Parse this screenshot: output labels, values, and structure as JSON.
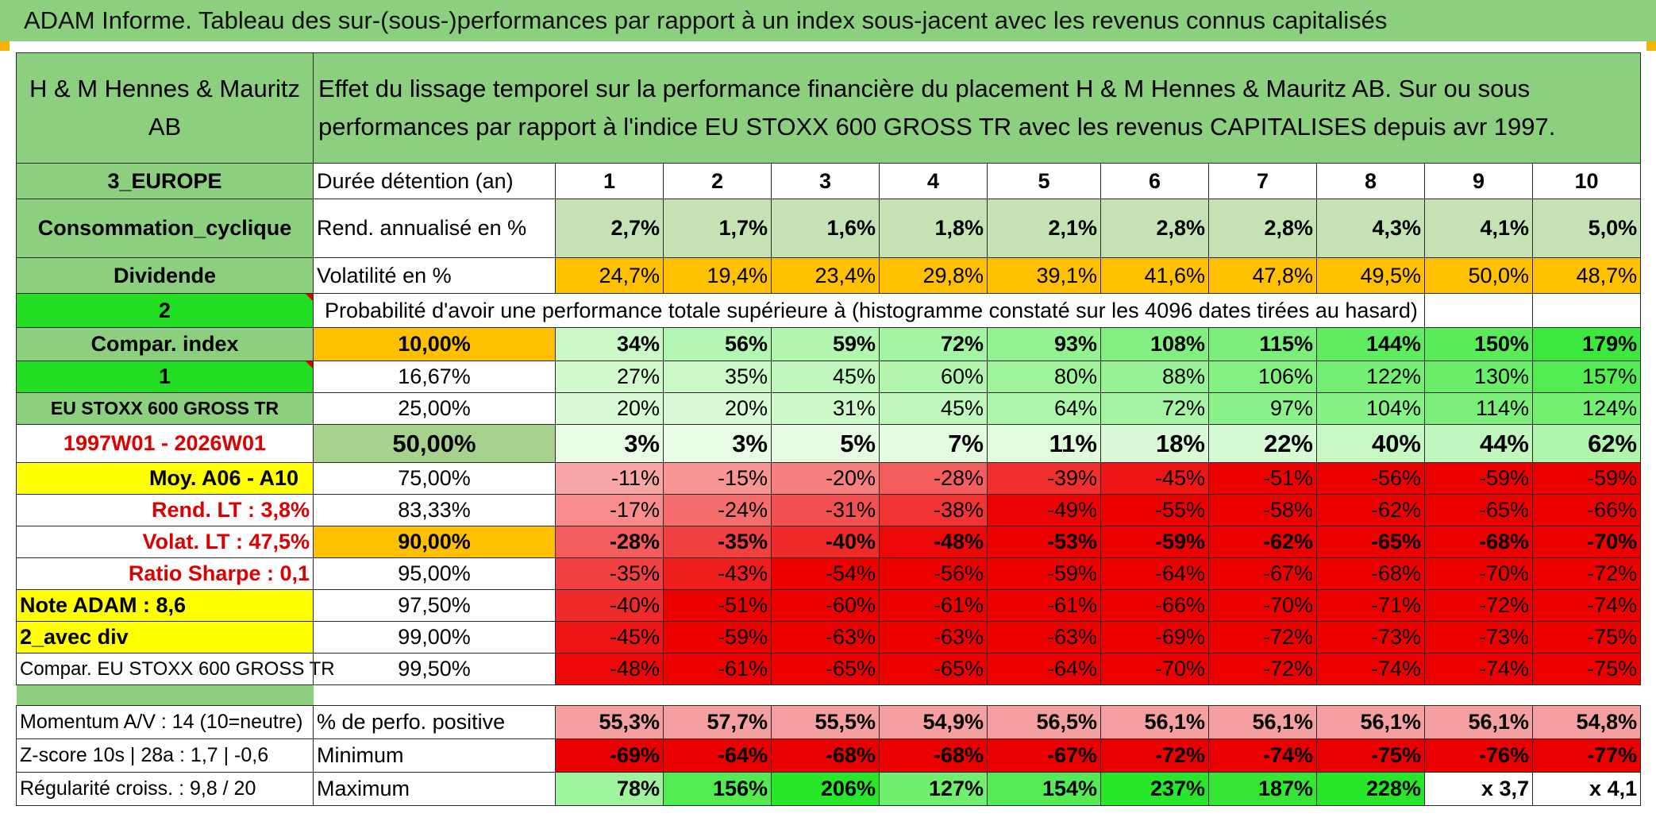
{
  "title": "ADAM Informe. Tableau des sur-(sous-)performances par rapport à un index sous-jacent avec les revenus connus capitalisés",
  "header": {
    "company": "H & M Hennes & Mauritz AB",
    "description": "Effet du lissage temporel sur la performance financière du placement H & M Hennes & Mauritz AB. Sur ou sous performances par rapport à l'indice EU STOXX 600 GROSS TR avec les revenus CAPITALISES depuis avr 1997."
  },
  "left_labels": {
    "region": "3_EUROPE",
    "sector": "Consommation_cyclique",
    "type": "Dividende",
    "val2": "2",
    "compar_index": "Compar. index",
    "val1": "1",
    "index_name": "EU STOXX 600 GROSS TR",
    "period": "1997W01 - 2026W01",
    "moy": "Moy. A06 - A10",
    "rend_lt": "Rend. LT :   3,8%",
    "volat_lt": "Volat. LT :   47,5%",
    "sharpe": "Ratio Sharpe :    0,1",
    "note": "Note ADAM : 8,6",
    "avec_div": "2_avec div",
    "compar_full": "Compar. EU STOXX 600 GROSS TR",
    "momentum": "Momentum A/V : 14 (10=neutre)",
    "zscore": "Z-score 10s | 28a : 1,7 | -0,6",
    "regularite": "Régularité croiss. : 9,8 / 20"
  },
  "row_labels": {
    "duree": "Durée détention (an)",
    "rend": "Rend. annualisé en %",
    "volat": "Volatilité en %",
    "proba": "Probabilité d'avoir une performance totale supérieure à (histogramme constaté sur les 4096 dates tirées au hasard)",
    "pct_pos": "% de perfo. positive",
    "minimum": "Minimum",
    "maximum": "Maximum"
  },
  "years": [
    "1",
    "2",
    "3",
    "4",
    "5",
    "6",
    "7",
    "8",
    "9",
    "10"
  ],
  "rend": [
    "2,7%",
    "1,7%",
    "1,6%",
    "1,8%",
    "2,1%",
    "2,8%",
    "2,8%",
    "4,3%",
    "4,1%",
    "5,0%"
  ],
  "volat": [
    "24,7%",
    "19,4%",
    "23,4%",
    "29,8%",
    "39,1%",
    "41,6%",
    "47,8%",
    "49,5%",
    "50,0%",
    "48,7%"
  ],
  "prob_rows": [
    {
      "p": "10,00%",
      "v": [
        "34%",
        "56%",
        "59%",
        "72%",
        "93%",
        "108%",
        "115%",
        "144%",
        "150%",
        "179%"
      ]
    },
    {
      "p": "16,67%",
      "v": [
        "27%",
        "35%",
        "45%",
        "60%",
        "80%",
        "88%",
        "106%",
        "122%",
        "130%",
        "157%"
      ]
    },
    {
      "p": "25,00%",
      "v": [
        "20%",
        "20%",
        "31%",
        "45%",
        "64%",
        "72%",
        "97%",
        "104%",
        "114%",
        "124%"
      ]
    },
    {
      "p": "50,00%",
      "v": [
        "3%",
        "3%",
        "5%",
        "7%",
        "11%",
        "18%",
        "22%",
        "40%",
        "44%",
        "62%"
      ]
    },
    {
      "p": "75,00%",
      "v": [
        "-11%",
        "-15%",
        "-20%",
        "-28%",
        "-39%",
        "-45%",
        "-51%",
        "-56%",
        "-59%",
        "-59%"
      ]
    },
    {
      "p": "83,33%",
      "v": [
        "-17%",
        "-24%",
        "-31%",
        "-38%",
        "-49%",
        "-55%",
        "-58%",
        "-62%",
        "-65%",
        "-66%"
      ]
    },
    {
      "p": "90,00%",
      "v": [
        "-28%",
        "-35%",
        "-40%",
        "-48%",
        "-53%",
        "-59%",
        "-62%",
        "-65%",
        "-68%",
        "-70%"
      ]
    },
    {
      "p": "95,00%",
      "v": [
        "-35%",
        "-43%",
        "-54%",
        "-56%",
        "-59%",
        "-64%",
        "-67%",
        "-68%",
        "-70%",
        "-72%"
      ]
    },
    {
      "p": "97,50%",
      "v": [
        "-40%",
        "-51%",
        "-60%",
        "-61%",
        "-61%",
        "-66%",
        "-70%",
        "-71%",
        "-72%",
        "-74%"
      ]
    },
    {
      "p": "99,00%",
      "v": [
        "-45%",
        "-59%",
        "-63%",
        "-63%",
        "-63%",
        "-69%",
        "-72%",
        "-73%",
        "-73%",
        "-75%"
      ]
    },
    {
      "p": "99,50%",
      "v": [
        "-48%",
        "-61%",
        "-65%",
        "-65%",
        "-64%",
        "-70%",
        "-72%",
        "-74%",
        "-74%",
        "-75%"
      ]
    }
  ],
  "pct_pos": [
    "55,3%",
    "57,7%",
    "55,5%",
    "54,9%",
    "56,5%",
    "56,1%",
    "56,1%",
    "56,1%",
    "56,1%",
    "54,8%"
  ],
  "minimum": [
    "-69%",
    "-64%",
    "-68%",
    "-68%",
    "-67%",
    "-72%",
    "-74%",
    "-75%",
    "-76%",
    "-77%"
  ],
  "maximum": [
    "78%",
    "156%",
    "206%",
    "127%",
    "154%",
    "237%",
    "187%",
    "228%",
    "x 3,7",
    "x 4,1"
  ],
  "colors": {
    "header_green": "#8ccf7e",
    "bright_green": "#22dd22",
    "yellow": "#ffff00",
    "orange": "#ffc000",
    "red_text": "#dd0000"
  }
}
